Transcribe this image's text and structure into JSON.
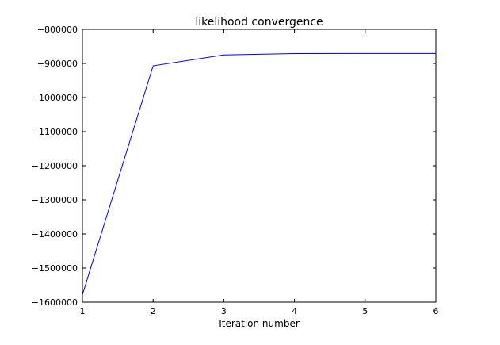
{
  "chart_data": {
    "type": "line",
    "title": "likelihood convergence",
    "xlabel": "Iteration number",
    "ylabel": "",
    "xlim": [
      1,
      6
    ],
    "ylim": [
      -1600000,
      -800000
    ],
    "grid": false,
    "x_ticks": [
      1,
      2,
      3,
      4,
      5,
      6
    ],
    "x_tick_labels": [
      "1",
      "2",
      "3",
      "4",
      "5",
      "6"
    ],
    "y_ticks": [
      -1600000,
      -1500000,
      -1400000,
      -1300000,
      -1200000,
      -1100000,
      -1000000,
      -900000,
      -800000
    ],
    "y_tick_labels": [
      "−1600000",
      "−1500000",
      "−1400000",
      "−1300000",
      "−1200000",
      "−1100000",
      "−1000000",
      "−900000",
      "−800000"
    ],
    "series": [
      {
        "name": "likelihood",
        "color": "#0000ff",
        "x": [
          1,
          2,
          3,
          4,
          5,
          6
        ],
        "y": [
          -1578000,
          -907000,
          -875000,
          -871000,
          -870500,
          -870500
        ]
      }
    ]
  }
}
